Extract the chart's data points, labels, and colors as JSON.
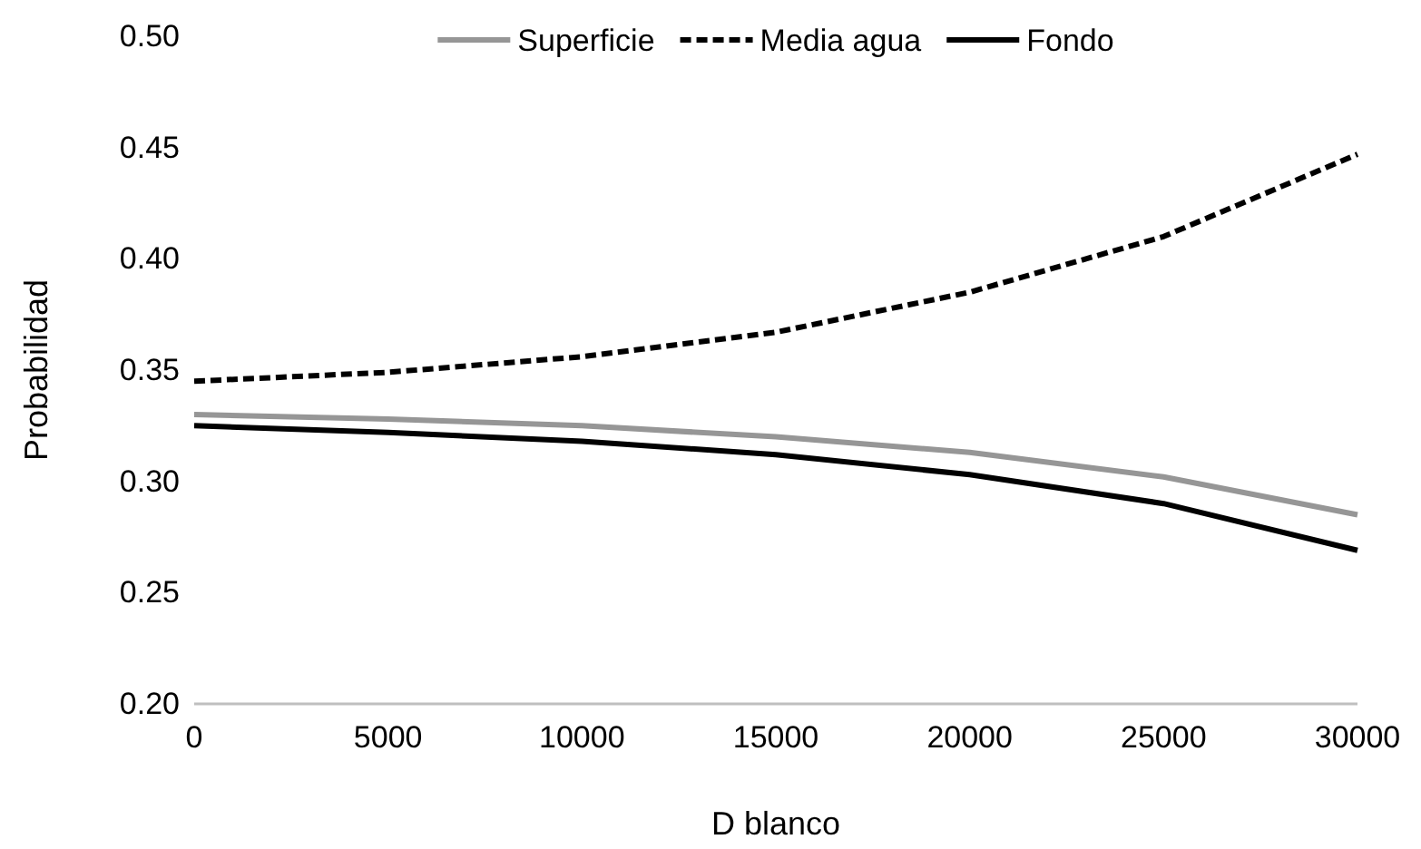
{
  "chart_data": {
    "type": "line",
    "xlabel": "D blanco",
    "ylabel": "Probabilidad",
    "x": [
      0,
      5000,
      10000,
      15000,
      20000,
      25000,
      30000
    ],
    "series": [
      {
        "name": "Superficie",
        "color": "#969696",
        "line_style": "solid",
        "values": [
          0.33,
          0.328,
          0.325,
          0.32,
          0.313,
          0.302,
          0.285
        ]
      },
      {
        "name": "Media agua",
        "color": "#000000",
        "line_style": "dashed",
        "values": [
          0.345,
          0.349,
          0.356,
          0.367,
          0.385,
          0.41,
          0.447
        ]
      },
      {
        "name": "Fondo",
        "color": "#000000",
        "line_style": "solid",
        "values": [
          0.325,
          0.322,
          0.318,
          0.312,
          0.303,
          0.29,
          0.269
        ]
      }
    ],
    "xlim": [
      0,
      30000
    ],
    "xticks": [
      0,
      5000,
      10000,
      15000,
      20000,
      25000,
      30000
    ],
    "ylim": [
      0.2,
      0.5
    ],
    "yticks": [
      {
        "value": 0.2,
        "label": "0.20"
      },
      {
        "value": 0.25,
        "label": "0.25"
      },
      {
        "value": 0.3,
        "label": "0.30"
      },
      {
        "value": 0.35,
        "label": "0.35"
      },
      {
        "value": 0.4,
        "label": "0.40"
      },
      {
        "value": 0.45,
        "label": "0.45"
      },
      {
        "value": 0.5,
        "label": "0.50"
      }
    ],
    "grid": false,
    "legend": "top",
    "marker": "none"
  }
}
